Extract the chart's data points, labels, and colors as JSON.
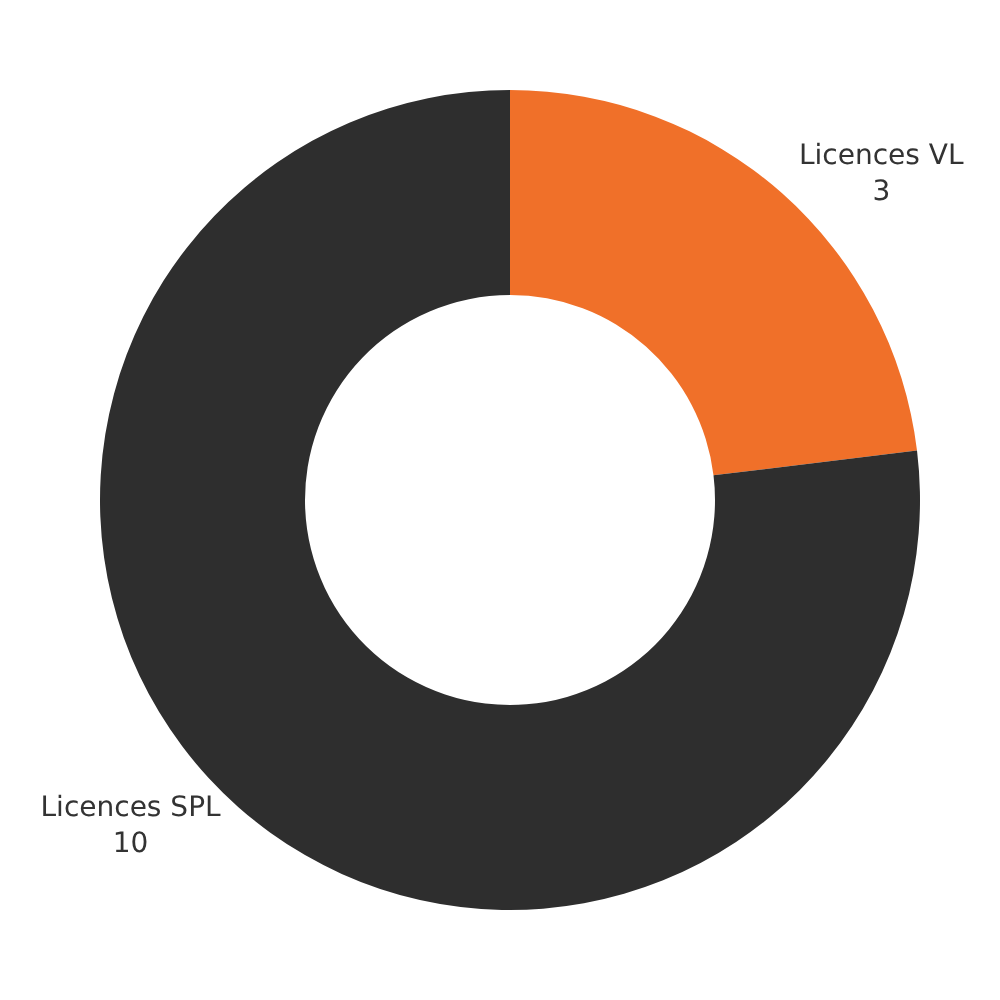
{
  "chart_data": {
    "type": "donut",
    "categories": [
      "Licences VL",
      "Licences SPL"
    ],
    "values": [
      3,
      10
    ],
    "colors": [
      "#f07029",
      "#2e2e2e"
    ],
    "data_labels": true,
    "legend": false
  }
}
